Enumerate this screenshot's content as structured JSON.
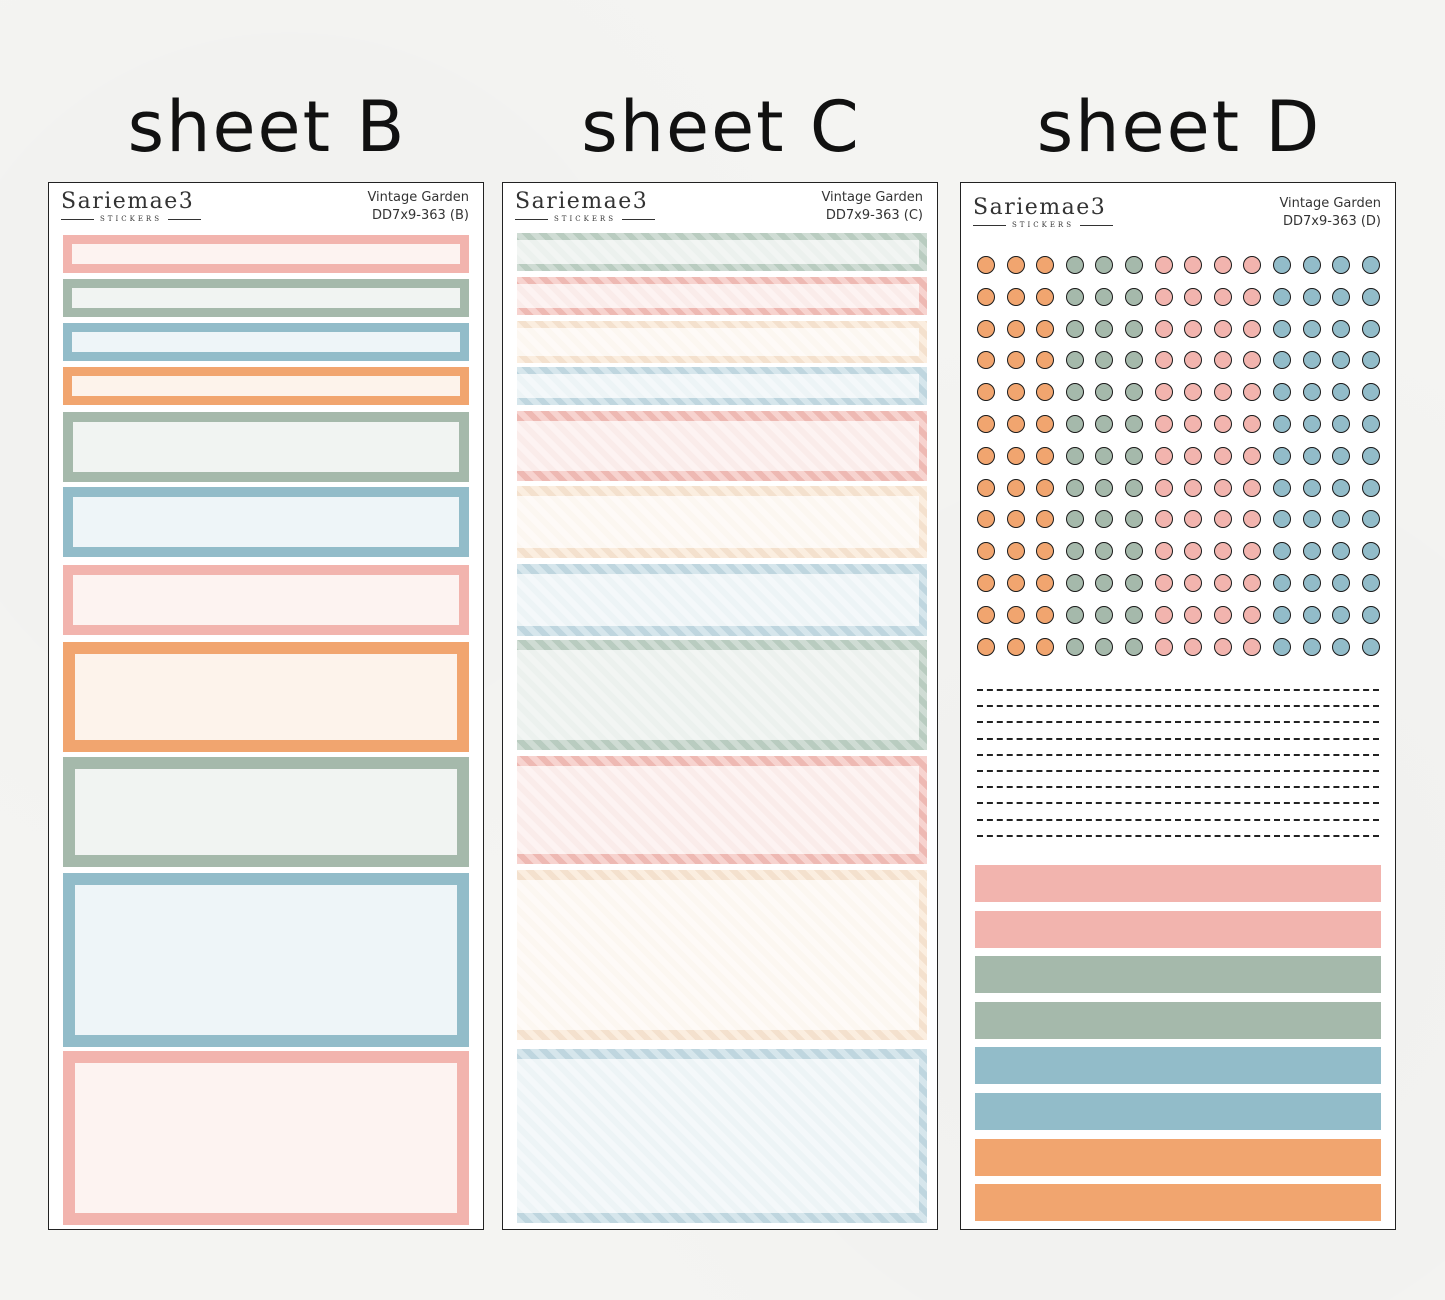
{
  "colors": {
    "pink": "#f2b4ae",
    "pink_fill": "#fdf3f1",
    "sage": "#a5b9ab",
    "sage_fill": "#f1f4f2",
    "blue": "#92bcc9",
    "blue_fill": "#eef5f8",
    "orange": "#f1a56f",
    "orange_fill": "#fdf3eb"
  },
  "headings": {
    "b": "sheet B",
    "c": "sheet C",
    "d": "sheet D"
  },
  "brand": {
    "name": "Sariemae3",
    "sub": "STICKERS"
  },
  "sheet_b": {
    "title": "Vintage Garden",
    "code": "DD7x9-363 (B)"
  },
  "sheet_c": {
    "title": "Vintage Garden",
    "code": "DD7x9-363 (C)"
  },
  "sheet_d": {
    "title": "Vintage Garden",
    "code": "DD7x9-363 (D)"
  },
  "sheet_b_boxes": [
    "pink",
    "sage",
    "blue",
    "orange",
    "sage",
    "blue",
    "pink",
    "orange",
    "sage",
    "blue",
    "pink"
  ],
  "sheet_c_boxes": [
    "sage",
    "pink",
    "cream",
    "blue",
    "pink",
    "cream",
    "blue",
    "sage",
    "pink",
    "cream",
    "blue"
  ],
  "sheet_d_dot_columns": [
    "orange",
    "orange",
    "orange",
    "sage",
    "sage",
    "sage",
    "pink",
    "pink",
    "pink",
    "pink",
    "blue",
    "blue",
    "blue",
    "blue"
  ],
  "sheet_d_dot_rows": 13,
  "sheet_d_dash_rows": 10,
  "sheet_d_strips": [
    "pink",
    "pink",
    "sage",
    "sage",
    "blue",
    "blue",
    "orange",
    "orange"
  ]
}
